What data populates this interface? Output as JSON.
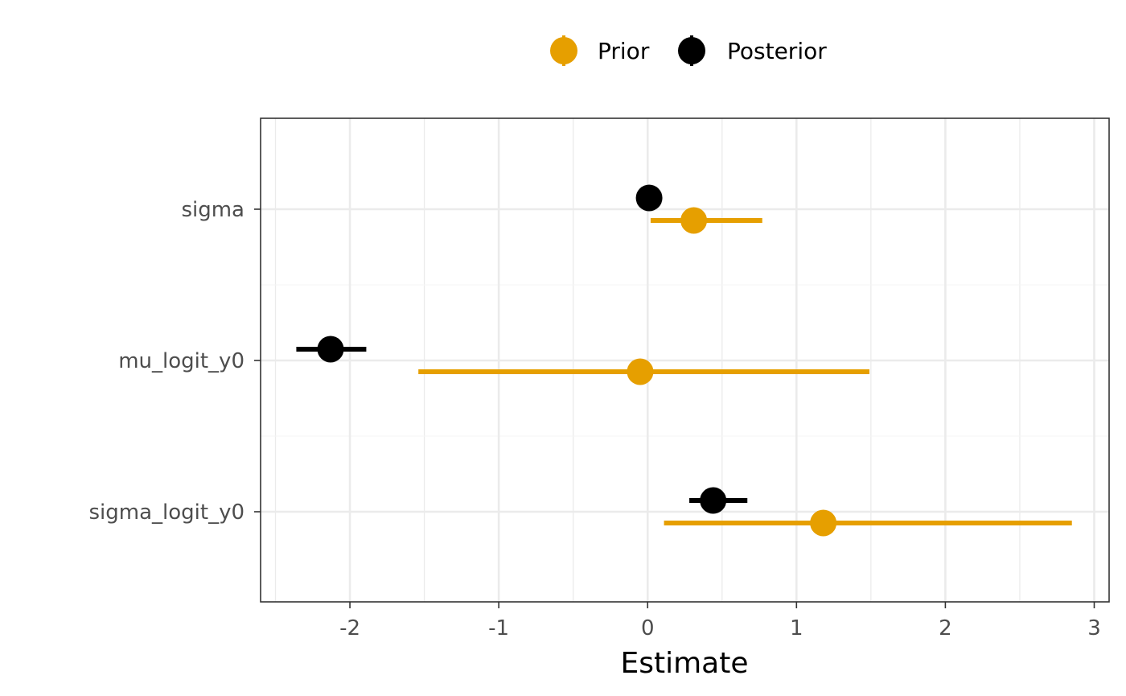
{
  "chart_data": {
    "type": "scatter",
    "subtype": "pointrange",
    "title": "",
    "xlabel": "Estimate",
    "ylabel": "",
    "xlim": [
      -2.6,
      3.1
    ],
    "x_ticks": [
      -2,
      -1,
      0,
      1,
      2,
      3
    ],
    "x_tick_labels": [
      "-2",
      "-1",
      "0",
      "1",
      "2",
      "3"
    ],
    "categories": [
      "sigma",
      "mu_logit_y0",
      "sigma_logit_y0"
    ],
    "grid": true,
    "legend_position": "top",
    "series": [
      {
        "name": "Prior",
        "color": "#E69F00",
        "estimate": [
          0.31,
          -0.05,
          1.18
        ],
        "lower": [
          0.02,
          -1.54,
          0.11
        ],
        "upper": [
          0.77,
          1.49,
          2.85
        ]
      },
      {
        "name": "Posterior",
        "color": "#000000",
        "estimate": [
          0.01,
          -2.13,
          0.44
        ],
        "lower": [
          0.01,
          -2.36,
          0.28
        ],
        "upper": [
          0.01,
          -1.89,
          0.67
        ]
      }
    ]
  }
}
